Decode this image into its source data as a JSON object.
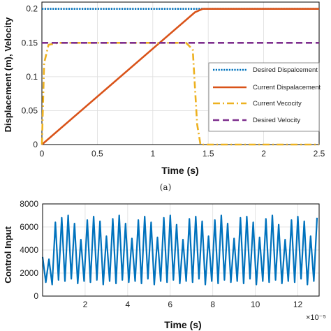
{
  "caption": "(a)",
  "chart_data": [
    {
      "type": "line",
      "xlabel": "Time (s)",
      "ylabel": "Displacement (m), Velocity",
      "xlim": [
        0,
        2.5
      ],
      "ylim": [
        0,
        0.21
      ],
      "grid": true,
      "legend_placement": "center-right",
      "x_ticks": [
        "0",
        "0.5",
        "1",
        "1.5",
        "2",
        "2.5"
      ],
      "y_ticks": [
        "0",
        "0.05",
        "0.1",
        "0.15",
        "0.2"
      ],
      "series": [
        {
          "name": "Desired Dispalcement",
          "color": "#0072BD",
          "style": "dotted",
          "x": [
            0,
            2.5
          ],
          "y": [
            0.2,
            0.2
          ]
        },
        {
          "name": "Current Dispalacement",
          "color": "#D95319",
          "style": "solid",
          "x": [
            0,
            1.38,
            1.45,
            2.5
          ],
          "y": [
            0,
            0.195,
            0.2,
            0.2
          ]
        },
        {
          "name": "Current Vecocity",
          "color": "#EDB120",
          "style": "dashdot",
          "x": [
            0,
            0.02,
            0.06,
            0.15,
            1.3,
            1.36,
            1.4,
            1.43,
            2.5
          ],
          "y": [
            0,
            0.12,
            0.147,
            0.15,
            0.15,
            0.14,
            0.03,
            0,
            0
          ]
        },
        {
          "name": "Desired Velocity",
          "color": "#7E2F8E",
          "style": "dashed",
          "x": [
            0,
            2.5
          ],
          "y": [
            0.15,
            0.15
          ]
        }
      ]
    },
    {
      "type": "line",
      "xlabel": "Time (s)",
      "ylabel": "Control Input",
      "xlim": [
        0,
        13
      ],
      "ylim": [
        0,
        8000
      ],
      "grid": true,
      "x_ticks": [
        "2",
        "4",
        "6",
        "8",
        "10",
        "12"
      ],
      "y_ticks": [
        "0",
        "2000",
        "4000",
        "6000",
        "8000"
      ],
      "x_exponent": "×10⁻⁵",
      "series": [
        {
          "color": "#0072BD",
          "style": "solid",
          "x": [
            0,
            0.15,
            0.3,
            0.45,
            0.6,
            0.75,
            0.9,
            1.05,
            1.2,
            1.35,
            1.5,
            1.65,
            1.8,
            1.95,
            2.1,
            2.25,
            2.4,
            2.55,
            2.7,
            2.85,
            3.0,
            3.15,
            3.3,
            3.45,
            3.6,
            3.75,
            3.9,
            4.05,
            4.2,
            4.35,
            4.5,
            4.65,
            4.8,
            4.95,
            5.1,
            5.25,
            5.4,
            5.55,
            5.7,
            5.85,
            6.0,
            6.15,
            6.3,
            6.45,
            6.6,
            6.75,
            6.9,
            7.05,
            7.2,
            7.35,
            7.5,
            7.65,
            7.8,
            7.95,
            8.1,
            8.25,
            8.4,
            8.55,
            8.7,
            8.85,
            9.0,
            9.15,
            9.3,
            9.45,
            9.6,
            9.75,
            9.9,
            10.05,
            10.2,
            10.35,
            10.5,
            10.65,
            10.8,
            10.95,
            11.1,
            11.25,
            11.4,
            11.55,
            11.7,
            11.85,
            12.0,
            12.15,
            12.3,
            12.45,
            12.6,
            12.75,
            12.9
          ],
          "y": [
            3400,
            1200,
            3200,
            1000,
            6400,
            1400,
            6800,
            1300,
            7000,
            1500,
            6300,
            1100,
            4900,
            1300,
            6600,
            1200,
            6900,
            1400,
            6500,
            1000,
            5200,
            1300,
            6700,
            1100,
            7000,
            1400,
            6300,
            1200,
            5000,
            1300,
            6600,
            1100,
            6900,
            1500,
            6400,
            1000,
            5100,
            1300,
            6800,
            1200,
            7000,
            1400,
            6200,
            1100,
            4900,
            1300,
            6700,
            1200,
            6900,
            1500,
            6500,
            1000,
            5200,
            1300,
            6600,
            1100,
            7000,
            1400,
            6300,
            1200,
            5000,
            1300,
            6800,
            1100,
            6900,
            1500,
            6400,
            1000,
            5100,
            1300,
            6700,
            1200,
            7000,
            1400,
            6200,
            1100,
            4900,
            1300,
            6600,
            1200,
            6900,
            1500,
            6500,
            1000,
            5200,
            1300,
            6800
          ]
        }
      ]
    }
  ]
}
